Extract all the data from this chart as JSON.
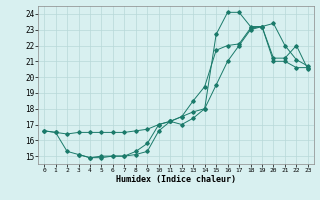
{
  "xlabel": "Humidex (Indice chaleur)",
  "bg_color": "#d8f0f0",
  "grid_color": "#b8d8d8",
  "line_color": "#1a7a6a",
  "xlim": [
    -0.5,
    23.5
  ],
  "ylim": [
    14.5,
    24.5
  ],
  "yticks": [
    15,
    16,
    17,
    18,
    19,
    20,
    21,
    22,
    23,
    24
  ],
  "xticks": [
    0,
    1,
    2,
    3,
    4,
    5,
    6,
    7,
    8,
    9,
    10,
    11,
    12,
    13,
    14,
    15,
    16,
    17,
    18,
    19,
    20,
    21,
    22,
    23
  ],
  "line1_x": [
    0,
    1,
    2,
    3,
    4,
    5,
    6,
    7,
    8,
    9,
    10,
    11,
    12,
    13,
    14,
    15,
    16,
    17,
    18,
    19,
    20,
    21,
    22,
    23
  ],
  "line1_y": [
    16.6,
    16.5,
    16.4,
    16.5,
    16.5,
    16.5,
    16.5,
    16.5,
    16.6,
    16.7,
    17.0,
    17.2,
    17.5,
    17.8,
    18.0,
    19.5,
    21.0,
    22.0,
    23.0,
    23.2,
    21.0,
    21.0,
    20.6,
    20.6
  ],
  "line2_x": [
    0,
    1,
    2,
    3,
    4,
    5,
    6,
    7,
    8,
    9,
    10,
    11,
    12,
    13,
    14,
    15,
    16,
    17,
    18,
    19,
    20,
    21,
    22,
    23
  ],
  "line2_y": [
    16.6,
    16.5,
    15.3,
    15.1,
    14.9,
    14.9,
    15.0,
    15.0,
    15.1,
    15.3,
    16.6,
    17.2,
    17.5,
    18.5,
    19.4,
    21.7,
    22.0,
    22.1,
    23.1,
    23.2,
    21.2,
    21.2,
    22.0,
    20.5
  ],
  "line3_x": [
    3,
    4,
    5,
    6,
    7,
    8,
    9,
    10,
    11,
    12,
    13,
    14,
    15,
    16,
    17,
    18,
    19,
    20,
    21,
    22,
    23
  ],
  "line3_y": [
    15.1,
    14.9,
    15.0,
    15.0,
    15.0,
    15.3,
    15.8,
    17.0,
    17.2,
    17.0,
    17.4,
    18.0,
    22.7,
    24.1,
    24.1,
    23.2,
    23.2,
    23.4,
    22.0,
    21.1,
    20.7
  ]
}
